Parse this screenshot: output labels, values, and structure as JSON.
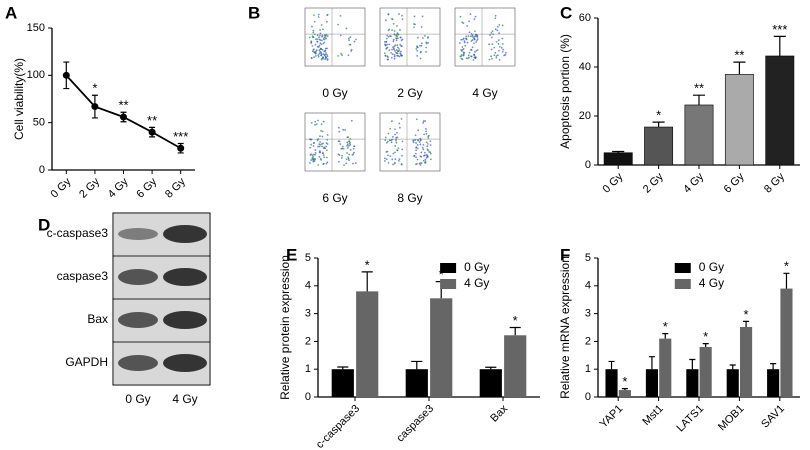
{
  "chart_data": [
    {
      "type": "line",
      "panel": "A",
      "ylabel": "Cell viability(%)",
      "categories": [
        "0 Gy",
        "2 Gy",
        "4 Gy",
        "6 Gy",
        "8 Gy"
      ],
      "values": [
        100,
        67,
        56,
        40,
        23
      ],
      "errors": [
        14,
        12,
        5,
        5,
        5
      ],
      "significance": [
        null,
        "*",
        "**",
        "**",
        "***"
      ],
      "color": "#000000",
      "ylim": [
        0,
        150
      ],
      "yticks": [
        0,
        50,
        100,
        150
      ]
    },
    {
      "type": "bar",
      "panel": "C",
      "ylabel": "Apoptosis portion (%)",
      "categories": [
        "0 Gy",
        "2 Gy",
        "4 Gy",
        "6 Gy",
        "8 Gy"
      ],
      "values": [
        5,
        15.5,
        24.5,
        37,
        44.5
      ],
      "errors": [
        0.5,
        2,
        4,
        5,
        8
      ],
      "significance": [
        null,
        "*",
        "**",
        "**",
        "***"
      ],
      "colors": [
        "#111111",
        "#555555",
        "#777777",
        "#aaaaaa",
        "#222222"
      ],
      "ylim": [
        0,
        60
      ],
      "yticks": [
        0,
        20,
        40,
        60
      ]
    },
    {
      "type": "grouped-bar",
      "panel": "E",
      "ylabel": "Relative protein expression",
      "categories": [
        "c-caspase3",
        "caspase3",
        "Bax"
      ],
      "series": [
        {
          "name": "0 Gy",
          "color": "#000000",
          "values": [
            1.0,
            1.0,
            1.0
          ],
          "errors": [
            0.08,
            0.28,
            0.07
          ]
        },
        {
          "name": "4 Gy",
          "color": "#666666",
          "values": [
            3.8,
            3.55,
            2.22
          ],
          "errors": [
            0.7,
            0.6,
            0.28
          ],
          "significance": [
            "*",
            "*",
            "*"
          ]
        }
      ],
      "legend": "top-right",
      "ylim": [
        0,
        5
      ],
      "yticks": [
        0,
        1,
        2,
        3,
        4,
        5
      ]
    },
    {
      "type": "grouped-bar",
      "panel": "F",
      "ylabel": "Relative mRNA expression",
      "categories": [
        "YAP1",
        "Mst1",
        "LATS1",
        "MOB1",
        "SAV1"
      ],
      "series": [
        {
          "name": "0 Gy",
          "color": "#000000",
          "values": [
            1.0,
            1.0,
            1.0,
            1.0,
            1.0
          ],
          "errors": [
            0.28,
            0.45,
            0.35,
            0.15,
            0.2
          ]
        },
        {
          "name": "4 Gy",
          "color": "#666666",
          "values": [
            0.25,
            2.1,
            1.8,
            2.52,
            3.9
          ],
          "errors": [
            0.05,
            0.18,
            0.12,
            0.2,
            0.55
          ],
          "significance": [
            "*",
            "*",
            "*",
            "*",
            "*"
          ]
        }
      ],
      "legend": "top-left",
      "ylim": [
        0,
        5
      ],
      "yticks": [
        0,
        1,
        2,
        3,
        4,
        5
      ]
    }
  ],
  "panel_b": {
    "label": "B",
    "captions": [
      "0 Gy",
      "2 Gy",
      "4 Gy",
      "6 Gy",
      "8 Gy"
    ]
  },
  "panel_d": {
    "label": "D",
    "rows": [
      "c-caspase3",
      "caspase3",
      "Bax",
      "GAPDH"
    ],
    "lanes": [
      "0 Gy",
      "4 Gy"
    ]
  }
}
